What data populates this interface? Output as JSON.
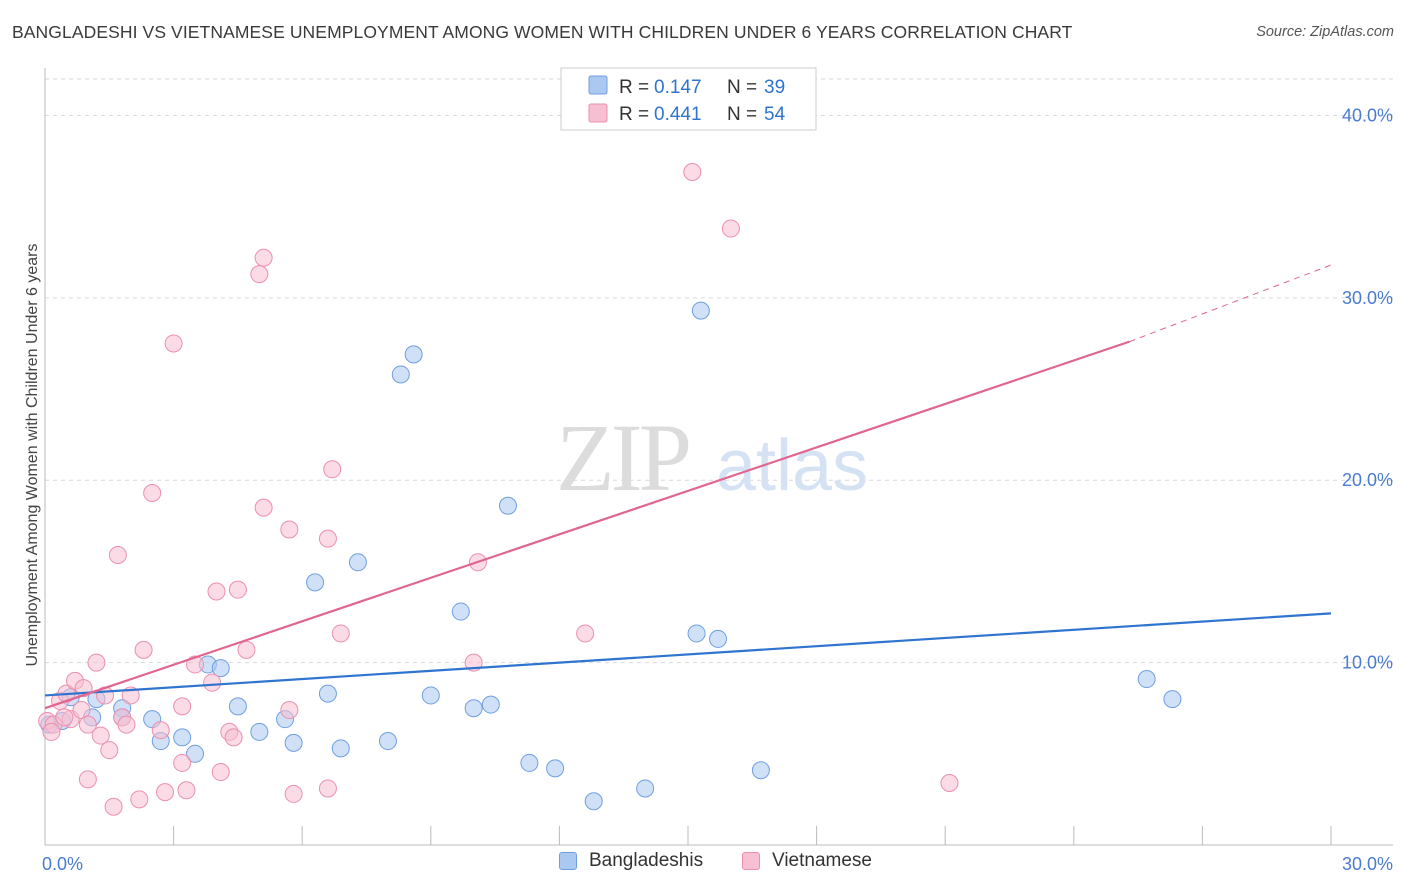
{
  "title": "BANGLADESHI VS VIETNAMESE UNEMPLOYMENT AMONG WOMEN WITH CHILDREN UNDER 6 YEARS CORRELATION CHART",
  "source": "Source: ZipAtlas.com",
  "watermark": {
    "zip": "ZIP",
    "atlas": "atlas"
  },
  "legend": {
    "r_label": "R =",
    "n_label": "N =",
    "entries": [
      {
        "r": "0.147",
        "n": "39"
      },
      {
        "r": "0.441",
        "n": "54"
      }
    ]
  },
  "bottom_legend": [
    "Bangladeshis",
    "Vietnamese"
  ],
  "colors": {
    "blue_fill": "#aac8f0",
    "blue_stroke": "#6f9fe0",
    "blue_line": "#2f74cf",
    "pink_fill": "#f7bfd2",
    "pink_stroke": "#ec8fae",
    "pink_line": "#e0658f",
    "tick_label": "#4a7bd0",
    "grid": "#d9d9d9"
  },
  "chart_data": {
    "type": "scatter",
    "title": "BANGLADESHI VS VIETNAMESE UNEMPLOYMENT AMONG WOMEN WITH CHILDREN UNDER 6 YEARS CORRELATION CHART",
    "xlabel": "",
    "ylabel": "Unemployment Among Women with Children Under 6 years",
    "xlim": [
      0,
      30
    ],
    "ylim": [
      0,
      42
    ],
    "x_tick_labels": [
      "0.0%",
      "30.0%"
    ],
    "y_ticks": [
      10,
      20,
      30,
      40
    ],
    "y_tick_labels": [
      "10.0%",
      "20.0%",
      "30.0%",
      "40.0%"
    ],
    "grid": true,
    "legend_position": "top-center",
    "series": [
      {
        "name": "Bangladeshis",
        "r": 0.147,
        "n": 39,
        "trend": {
          "x0": 0,
          "y0": 8.2,
          "x1": 30,
          "y1": 12.7
        },
        "points": [
          [
            0.1,
            6.6
          ],
          [
            0.4,
            6.8
          ],
          [
            0.6,
            8.1
          ],
          [
            1.2,
            8.0
          ],
          [
            1.8,
            7.5
          ],
          [
            1.8,
            7.0
          ],
          [
            2.5,
            6.9
          ],
          [
            2.7,
            5.7
          ],
          [
            3.2,
            5.9
          ],
          [
            3.5,
            5.0
          ],
          [
            3.8,
            9.9
          ],
          [
            4.1,
            9.7
          ],
          [
            4.5,
            7.6
          ],
          [
            5.0,
            6.2
          ],
          [
            5.6,
            6.9
          ],
          [
            5.8,
            5.6
          ],
          [
            6.3,
            14.4
          ],
          [
            6.6,
            8.3
          ],
          [
            6.9,
            5.3
          ],
          [
            7.3,
            15.5
          ],
          [
            8.0,
            5.7
          ],
          [
            8.3,
            25.8
          ],
          [
            8.6,
            26.9
          ],
          [
            9.0,
            8.2
          ],
          [
            9.7,
            12.8
          ],
          [
            10.0,
            7.5
          ],
          [
            10.4,
            7.7
          ],
          [
            10.8,
            18.6
          ],
          [
            11.3,
            4.5
          ],
          [
            11.9,
            4.2
          ],
          [
            12.8,
            2.4
          ],
          [
            14.0,
            3.1
          ],
          [
            15.2,
            11.6
          ],
          [
            15.3,
            29.3
          ],
          [
            15.7,
            11.3
          ],
          [
            16.7,
            4.1
          ],
          [
            25.7,
            9.1
          ],
          [
            26.3,
            8.0
          ],
          [
            1.1,
            7.0
          ]
        ]
      },
      {
        "name": "Vietnamese",
        "r": 0.441,
        "n": 54,
        "trend": {
          "x0": 0,
          "y0": 7.5,
          "x1": 25.3,
          "y1": 27.6,
          "dash_x1": 30,
          "dash_y1": 31.8
        },
        "points": [
          [
            0.05,
            6.8
          ],
          [
            0.2,
            6.6
          ],
          [
            0.35,
            7.9
          ],
          [
            0.5,
            8.3
          ],
          [
            0.6,
            6.9
          ],
          [
            0.7,
            9.0
          ],
          [
            0.85,
            7.4
          ],
          [
            1.0,
            3.6
          ],
          [
            1.0,
            6.6
          ],
          [
            1.2,
            10.0
          ],
          [
            1.3,
            6.0
          ],
          [
            1.4,
            8.2
          ],
          [
            1.6,
            2.1
          ],
          [
            1.7,
            15.9
          ],
          [
            1.8,
            7.0
          ],
          [
            1.9,
            6.6
          ],
          [
            2.0,
            8.2
          ],
          [
            2.2,
            2.5
          ],
          [
            2.3,
            10.7
          ],
          [
            2.5,
            19.3
          ],
          [
            2.8,
            2.9
          ],
          [
            3.0,
            27.5
          ],
          [
            3.2,
            4.5
          ],
          [
            3.2,
            7.6
          ],
          [
            3.3,
            3.0
          ],
          [
            3.5,
            9.9
          ],
          [
            4.0,
            13.9
          ],
          [
            4.1,
            4.0
          ],
          [
            4.3,
            6.2
          ],
          [
            4.4,
            5.9
          ],
          [
            4.5,
            14.0
          ],
          [
            4.7,
            10.7
          ],
          [
            5.0,
            31.3
          ],
          [
            5.1,
            32.2
          ],
          [
            5.1,
            18.5
          ],
          [
            5.7,
            17.3
          ],
          [
            5.8,
            2.8
          ],
          [
            5.7,
            7.4
          ],
          [
            6.6,
            3.1
          ],
          [
            6.6,
            16.8
          ],
          [
            6.7,
            20.6
          ],
          [
            6.9,
            11.6
          ],
          [
            10.0,
            10.0
          ],
          [
            10.1,
            15.5
          ],
          [
            12.6,
            11.6
          ],
          [
            15.1,
            36.9
          ],
          [
            16.0,
            33.8
          ],
          [
            21.1,
            3.4
          ],
          [
            0.15,
            6.2
          ],
          [
            0.45,
            7.0
          ],
          [
            0.9,
            8.6
          ],
          [
            1.5,
            5.2
          ],
          [
            2.7,
            6.3
          ],
          [
            3.9,
            8.9
          ]
        ]
      }
    ]
  }
}
